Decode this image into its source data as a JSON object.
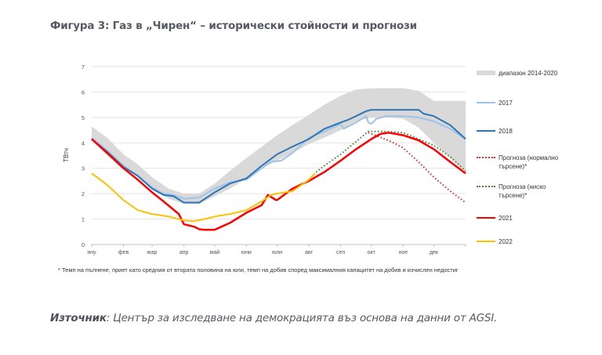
{
  "title": "Фигура 3: Газ в „Чирен“ – исторически стойности и прогнози",
  "footnote": "* Темп на пълнене, приет като средния от втората половина на юли, темп на добив според максималния капацитет на добив и изчислен недостиг",
  "source": {
    "label": "Източник",
    "text": ": Център за изследване на демокрацията въз основа на данни от AGSI."
  },
  "chart_data": {
    "type": "line",
    "title": "Фигура 3: Газ в „Чирен“ – исторически стойности и прогнози",
    "xlabel": "",
    "ylabel": "ТВтч",
    "ylim": [
      0,
      7
    ],
    "yticks": [
      0,
      1,
      2,
      3,
      4,
      5,
      6,
      7
    ],
    "xlim": [
      0,
      365
    ],
    "x_unit": "day of year",
    "xticks": [
      {
        "x": 0,
        "label": "яну"
      },
      {
        "x": 31,
        "label": "фев"
      },
      {
        "x": 59,
        "label": "мар"
      },
      {
        "x": 90,
        "label": "апр"
      },
      {
        "x": 120,
        "label": "май"
      },
      {
        "x": 151,
        "label": "юни"
      },
      {
        "x": 181,
        "label": "юли"
      },
      {
        "x": 212,
        "label": "авг"
      },
      {
        "x": 243,
        "label": "сеп"
      },
      {
        "x": 273,
        "label": "окт"
      },
      {
        "x": 304,
        "label": "ное"
      },
      {
        "x": 334,
        "label": "дек"
      }
    ],
    "grid": true,
    "legend_position": "right",
    "band": {
      "name": "диапазон 2014-2020",
      "color": "#d9d9d9",
      "x": [
        0,
        15,
        31,
        45,
        59,
        75,
        90,
        105,
        120,
        135,
        151,
        166,
        181,
        196,
        212,
        227,
        243,
        258,
        273,
        288,
        304,
        319,
        334,
        350,
        365
      ],
      "upper": [
        4.65,
        4.2,
        3.55,
        3.15,
        2.65,
        2.2,
        2.0,
        2.0,
        2.4,
        2.9,
        3.4,
        3.85,
        4.3,
        4.7,
        5.1,
        5.5,
        5.85,
        6.1,
        6.15,
        6.15,
        6.15,
        6.05,
        5.65,
        5.65,
        5.65
      ],
      "lower": [
        4.1,
        3.65,
        3.05,
        2.65,
        2.2,
        1.8,
        1.6,
        1.6,
        1.9,
        2.2,
        2.6,
        3.0,
        3.3,
        3.6,
        3.95,
        4.2,
        4.5,
        4.85,
        5.0,
        5.0,
        4.95,
        4.6,
        4.0,
        3.4,
        2.85
      ]
    },
    "series": [
      {
        "name": "2017",
        "color": "#9dc3e6",
        "style": "solid",
        "width": 2,
        "x": [
          0,
          15,
          31,
          45,
          59,
          70,
          80,
          90,
          105,
          120,
          135,
          151,
          166,
          175,
          185,
          196,
          212,
          227,
          243,
          246,
          258,
          268,
          270,
          273,
          278,
          288,
          304,
          319,
          334,
          350,
          365
        ],
        "y": [
          4.2,
          3.7,
          3.1,
          2.7,
          2.25,
          2.0,
          1.95,
          1.8,
          1.85,
          2.2,
          2.45,
          2.55,
          3.0,
          3.25,
          3.3,
          3.6,
          4.2,
          4.45,
          4.75,
          4.55,
          4.8,
          5.05,
          4.8,
          4.75,
          4.95,
          5.05,
          5.05,
          5.0,
          4.85,
          4.55,
          4.15
        ]
      },
      {
        "name": "2018",
        "color": "#2e75b6",
        "style": "solid",
        "width": 2,
        "x": [
          0,
          15,
          31,
          45,
          59,
          70,
          80,
          90,
          105,
          120,
          135,
          151,
          166,
          181,
          196,
          212,
          227,
          243,
          250,
          258,
          268,
          273,
          288,
          304,
          319,
          324,
          334,
          350,
          365
        ],
        "y": [
          4.15,
          3.65,
          3.05,
          2.7,
          2.2,
          1.95,
          1.9,
          1.65,
          1.65,
          2.05,
          2.4,
          2.6,
          3.1,
          3.55,
          3.85,
          4.15,
          4.55,
          4.8,
          4.9,
          5.05,
          5.25,
          5.3,
          5.3,
          5.3,
          5.3,
          5.15,
          5.05,
          4.7,
          4.15
        ]
      },
      {
        "name": "Прогноза (нормално търсене)*",
        "color": "#e03030",
        "style": "dotted",
        "width": 2,
        "x": [
          270,
          280,
          295,
          304,
          319,
          334,
          350,
          365
        ],
        "y": [
          4.4,
          4.25,
          4.0,
          3.8,
          3.25,
          2.65,
          2.1,
          1.65
        ]
      },
      {
        "name": "Прогноза (ниско търсене)*",
        "color": "#548235",
        "style": "dotted",
        "width": 2,
        "x": [
          219,
          227,
          243,
          258,
          270,
          285,
          304,
          319,
          334,
          350,
          365
        ],
        "y": [
          2.85,
          3.1,
          3.55,
          4.05,
          4.45,
          4.45,
          4.4,
          4.15,
          3.9,
          3.45,
          2.9
        ]
      },
      {
        "name": "2021",
        "color": "#ff0000",
        "style": "solid",
        "width": 2.5,
        "x": [
          0,
          15,
          31,
          45,
          59,
          70,
          85,
          90,
          100,
          105,
          110,
          120,
          135,
          151,
          166,
          172,
          180,
          181,
          196,
          212,
          227,
          243,
          258,
          273,
          282,
          290,
          304,
          319,
          334,
          350,
          365
        ],
        "y": [
          4.15,
          3.6,
          3.0,
          2.55,
          2.05,
          1.7,
          1.2,
          0.8,
          0.7,
          0.6,
          0.58,
          0.58,
          0.85,
          1.25,
          1.55,
          1.95,
          1.75,
          1.75,
          2.2,
          2.5,
          2.85,
          3.3,
          3.75,
          4.15,
          4.35,
          4.4,
          4.3,
          4.1,
          3.75,
          3.25,
          2.8
        ]
      },
      {
        "name": "2022",
        "color": "#ffc000",
        "style": "solid",
        "width": 2,
        "x": [
          0,
          15,
          31,
          45,
          59,
          75,
          90,
          100,
          110,
          120,
          135,
          151,
          166,
          175,
          181,
          196,
          212,
          218
        ],
        "y": [
          2.8,
          2.35,
          1.75,
          1.35,
          1.2,
          1.1,
          0.95,
          0.92,
          1.0,
          1.1,
          1.2,
          1.35,
          1.7,
          1.95,
          2.0,
          2.1,
          2.55,
          2.8
        ]
      }
    ]
  },
  "legend": [
    {
      "label": "диапазон 2014-2020",
      "kind": "band",
      "color": "#d9d9d9"
    },
    {
      "label": "2017",
      "kind": "line",
      "color": "#9dc3e6"
    },
    {
      "label": "2018",
      "kind": "line",
      "color": "#2e75b6"
    },
    {
      "label": "Прогноза (нормално търсене)*",
      "kind": "dotted",
      "color": "#e03030"
    },
    {
      "label": "Прогноза (ниско търсене)*",
      "kind": "dotted",
      "color": "#548235"
    },
    {
      "label": "2021",
      "kind": "line",
      "color": "#ff0000"
    },
    {
      "label": "2022",
      "kind": "line",
      "color": "#ffc000"
    }
  ]
}
